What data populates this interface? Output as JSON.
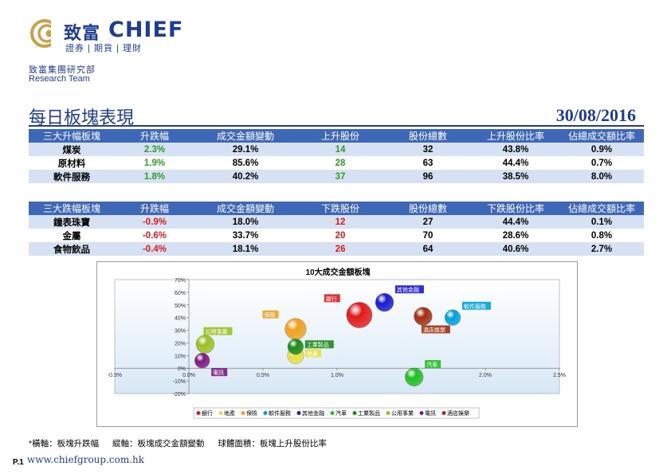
{
  "brand": {
    "name_cn": "致富",
    "name_en": "CHIEF",
    "tagline": "證券 | 期貨 | 理財",
    "dept_cn": "致富集團研究部",
    "dept_en": "Research Team",
    "color": "#1f3e93",
    "accent": "#c8a24a"
  },
  "page": {
    "title": "每日板塊表現",
    "date": "30/08/2016",
    "page_num": "P.1",
    "website": "www.chiefgroup.com.hk"
  },
  "up_table": {
    "headers": [
      "三大升幅板塊",
      "升跌幅",
      "成交金額變動",
      "上升股份",
      "股份總數",
      "上升股份比率",
      "佔總成交額比率"
    ],
    "rows": [
      [
        "煤炭",
        "2.3%",
        "29.1%",
        "14",
        "32",
        "43.8%",
        "0.9%"
      ],
      [
        "原材料",
        "1.9%",
        "85.6%",
        "28",
        "63",
        "44.4%",
        "0.7%"
      ],
      [
        "軟件服務",
        "1.8%",
        "40.2%",
        "37",
        "96",
        "38.5%",
        "8.0%"
      ]
    ]
  },
  "down_table": {
    "headers": [
      "三大跌幅板塊",
      "升跌幅",
      "成交金額變動",
      "下跌股份",
      "股份總數",
      "下跌股份比率",
      "佔總成交額比率"
    ],
    "rows": [
      [
        "鐘表珠寶",
        "-0.9%",
        "18.0%",
        "12",
        "27",
        "44.4%",
        "0.1%"
      ],
      [
        "金屬",
        "-0.6%",
        "33.7%",
        "20",
        "70",
        "28.6%",
        "0.8%"
      ],
      [
        "食物飲品",
        "-0.4%",
        "18.1%",
        "26",
        "64",
        "40.6%",
        "2.7%"
      ]
    ]
  },
  "chart_data": {
    "type": "scatter",
    "title": "10大成交金額板塊",
    "xlabel": "板塊升跌幅",
    "ylabel": "板塊成交金額變動",
    "xlim": [
      -0.5,
      2.5
    ],
    "ylim": [
      -20,
      70
    ],
    "x_ticks": [
      "-0.5%",
      "0.0%",
      "0.5%",
      "1.0%",
      "1.5%",
      "2.0%",
      "2.5%"
    ],
    "y_ticks": [
      "70%",
      "60%",
      "50%",
      "40%",
      "30%",
      "20%",
      "10%",
      "0%",
      "-10%",
      "-20%"
    ],
    "series": [
      {
        "name": "銀行",
        "x": 1.15,
        "y": 42,
        "size": 3.2,
        "color": "#e01b1b",
        "label_offset": "top-left"
      },
      {
        "name": "地產",
        "x": 0.72,
        "y": 10,
        "size": 1.3,
        "color": "#e8e040",
        "label_offset": "right"
      },
      {
        "name": "保險",
        "x": 0.72,
        "y": 31,
        "size": 2.2,
        "color": "#f0a020",
        "label_offset": "top-left"
      },
      {
        "name": "軟件服務",
        "x": 1.78,
        "y": 40,
        "size": 1.2,
        "color": "#00a0e0",
        "label_offset": "top-right"
      },
      {
        "name": "其他金融",
        "x": 1.32,
        "y": 52,
        "size": 1.6,
        "color": "#1a1ad0",
        "label_offset": "top-right"
      },
      {
        "name": "汽車",
        "x": 1.52,
        "y": -7,
        "size": 1.6,
        "color": "#20c020",
        "label_offset": "top-right"
      },
      {
        "name": "工業製品",
        "x": 0.72,
        "y": 17,
        "size": 1.2,
        "color": "#1a8a1a",
        "label_offset": "right"
      },
      {
        "name": "公用事業",
        "x": 0.11,
        "y": 19,
        "size": 1.6,
        "color": "#9ac020",
        "label_offset": "top"
      },
      {
        "name": "電訊",
        "x": 0.09,
        "y": 6,
        "size": 1.1,
        "color": "#801880",
        "label_offset": "bottom-right"
      },
      {
        "name": "酒店娛樂",
        "x": 1.58,
        "y": 41,
        "size": 1.6,
        "color": "#a03010",
        "label_offset": "bottom"
      }
    ],
    "legend_position": "bottom",
    "x_axis_value_label": "1.5%"
  },
  "note": {
    "x_axis": "*橫軸：板塊升跌幅",
    "y_axis": "縱軸：板塊成交金額變動",
    "bubble": "球體面積：板塊上升股份比率"
  }
}
